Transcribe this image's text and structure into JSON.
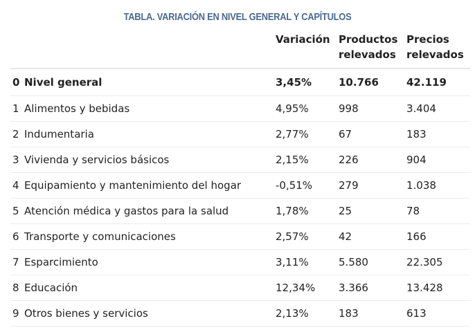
{
  "title": "TABLA. VARIACIÓN EN NIVEL GENERAL Y CAPÍTULOS",
  "headers": {
    "variacion": "Variación",
    "productos_line1": "Productos",
    "productos_line2": "relevados",
    "precios_line1": "Precios",
    "precios_line2": "relevados"
  },
  "rows": [
    {
      "num": "0",
      "name": "Nivel general",
      "variacion": "3,45%",
      "productos": "10.766",
      "precios": "42.119"
    },
    {
      "num": "1",
      "name": "Alimentos y bebidas",
      "variacion": "4,95%",
      "productos": "998",
      "precios": "3.404"
    },
    {
      "num": "2",
      "name": "Indumentaria",
      "variacion": "2,77%",
      "productos": "67",
      "precios": "183"
    },
    {
      "num": "3",
      "name": "Vivienda y servicios básicos",
      "variacion": "2,15%",
      "productos": "226",
      "precios": "904"
    },
    {
      "num": "4",
      "name": "Equipamiento y mantenimiento del hogar",
      "variacion": "-0,51%",
      "productos": "279",
      "precios": "1.038"
    },
    {
      "num": "5",
      "name": "Atención médica y gastos para la salud",
      "variacion": "1,78%",
      "productos": "25",
      "precios": "78"
    },
    {
      "num": "6",
      "name": "Transporte y comunicaciones",
      "variacion": "2,57%",
      "productos": "42",
      "precios": "166"
    },
    {
      "num": "7",
      "name": "Esparcimiento",
      "variacion": "3,11%",
      "productos": "5.580",
      "precios": "22.305"
    },
    {
      "num": "8",
      "name": "Educación",
      "variacion": "12,34%",
      "productos": "3.366",
      "precios": "13.428"
    },
    {
      "num": "9",
      "name": "Otros bienes y servicios",
      "variacion": "2,13%",
      "productos": "183",
      "precios": "613"
    }
  ],
  "colors": {
    "title": "#4a6a8f",
    "text": "#222222",
    "rule": "#ececec"
  }
}
